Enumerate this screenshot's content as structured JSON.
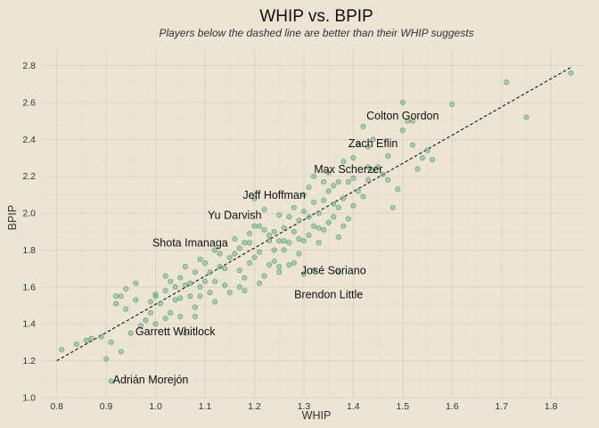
{
  "chart_data": {
    "type": "scatter",
    "title": "WHIP vs. BPIP",
    "subtitle": "Players below the dashed line are better than their WHIP suggests",
    "xlabel": "WHIP",
    "ylabel": "BPIP",
    "xlim": [
      0.77,
      1.87
    ],
    "ylim": [
      1.0,
      2.88
    ],
    "x_ticks": [
      0.8,
      0.9,
      1.0,
      1.1,
      1.2,
      1.3,
      1.4,
      1.5,
      1.6,
      1.7,
      1.8
    ],
    "y_ticks": [
      1.0,
      1.2,
      1.4,
      1.6,
      1.8,
      2.0,
      2.2,
      2.4,
      2.6,
      2.8
    ],
    "x_tick_labels": [
      "0.8",
      "0.9",
      "1.0",
      "1.1",
      "1.2",
      "1.3",
      "1.4",
      "1.5",
      "1.6",
      "1.7",
      "1.8"
    ],
    "y_tick_labels": [
      "1.0",
      "1.2",
      "1.4",
      "1.6",
      "1.8",
      "2.0",
      "2.2",
      "2.4",
      "2.6",
      "2.8"
    ],
    "grid": true,
    "reference_line": {
      "style": "dashed",
      "from": [
        0.8,
        1.2
      ],
      "to": [
        1.84,
        2.79
      ]
    },
    "point_color": "#78B88C",
    "background_color": "#ECE4D4",
    "series": [
      {
        "x": [
          0.81,
          0.84,
          0.86,
          0.87,
          0.89,
          0.9,
          0.91,
          0.91,
          0.92,
          0.92,
          0.93,
          0.94,
          0.93,
          0.94,
          0.96,
          0.97,
          0.95,
          0.96,
          0.99,
          0.99,
          1.0,
          1.0,
          1.01,
          1.02,
          1.02,
          1.03,
          1.03,
          1.04,
          1.04,
          1.05,
          1.05,
          1.06,
          1.06,
          1.07,
          1.07,
          1.08,
          1.08,
          1.09,
          1.09,
          1.1,
          1.1,
          1.11,
          1.11,
          1.12,
          1.12,
          1.13,
          1.14,
          1.14,
          1.15,
          1.16,
          1.16,
          1.17,
          1.17,
          1.18,
          1.18,
          1.19,
          1.19,
          1.2,
          1.2,
          1.21,
          1.21,
          1.22,
          1.22,
          1.23,
          1.23,
          1.24,
          1.24,
          1.25,
          1.25,
          1.25,
          1.26,
          1.26,
          1.27,
          1.27,
          1.28,
          1.28,
          1.28,
          1.29,
          1.29,
          1.3,
          1.3,
          1.3,
          1.31,
          1.31,
          1.31,
          1.32,
          1.32,
          1.32,
          1.33,
          1.33,
          1.34,
          1.34,
          1.34,
          1.35,
          1.35,
          1.35,
          1.36,
          1.36,
          1.36,
          1.37,
          1.37,
          1.37,
          1.38,
          1.38,
          1.38,
          1.39,
          1.39,
          1.4,
          1.4,
          1.4,
          1.41,
          1.41,
          1.42,
          1.42,
          1.43,
          1.43,
          1.44,
          1.44,
          1.45,
          1.46,
          1.47,
          1.48,
          1.49,
          1.5,
          1.5,
          1.51,
          1.52,
          1.53,
          1.54,
          1.55,
          1.56,
          1.6,
          1.71,
          1.75,
          1.84,
          1.2,
          1.22,
          1.24,
          1.26,
          1.27,
          1.21,
          1.18,
          1.15,
          1.12,
          1.08,
          1.05,
          1.02,
          0.98,
          1.09,
          1.13,
          1.19,
          1.23,
          1.29,
          1.33,
          1.37,
          1.43,
          1.47,
          1.52,
          1.32,
          1.3,
          1.25,
          1.17,
          1.06,
          1.0
        ],
        "y": [
          1.26,
          1.29,
          1.31,
          1.32,
          1.33,
          1.21,
          1.09,
          1.3,
          1.51,
          1.55,
          1.55,
          1.59,
          1.25,
          1.48,
          1.53,
          1.39,
          1.35,
          1.62,
          1.46,
          1.52,
          1.4,
          1.55,
          1.51,
          1.58,
          1.66,
          1.63,
          1.46,
          1.53,
          1.6,
          1.54,
          1.65,
          1.61,
          1.71,
          1.55,
          1.62,
          1.68,
          1.49,
          1.55,
          1.6,
          1.63,
          1.73,
          1.57,
          1.68,
          1.8,
          1.63,
          1.71,
          1.7,
          1.61,
          1.76,
          1.78,
          1.86,
          1.69,
          1.81,
          1.65,
          1.84,
          1.73,
          1.89,
          1.93,
          1.76,
          1.79,
          1.93,
          1.66,
          1.91,
          1.72,
          1.88,
          1.74,
          1.9,
          1.68,
          1.85,
          1.99,
          1.85,
          1.92,
          1.84,
          1.98,
          1.73,
          1.9,
          2.03,
          1.78,
          1.96,
          1.85,
          2.01,
          2.1,
          1.88,
          1.98,
          2.14,
          1.93,
          2.06,
          2.2,
          1.84,
          2.0,
          1.91,
          2.07,
          2.17,
          1.95,
          2.12,
          2.22,
          1.98,
          2.05,
          2.15,
          1.87,
          2.03,
          2.17,
          1.93,
          2.08,
          2.28,
          1.97,
          2.17,
          2.04,
          2.19,
          2.3,
          2.12,
          2.37,
          2.09,
          2.47,
          2.18,
          2.36,
          2.23,
          2.4,
          2.25,
          2.21,
          2.18,
          2.03,
          2.13,
          2.45,
          2.6,
          2.5,
          2.37,
          2.24,
          2.3,
          2.34,
          2.29,
          2.59,
          2.71,
          2.52,
          2.76,
          2.08,
          2.02,
          1.8,
          1.8,
          1.72,
          1.62,
          1.58,
          1.57,
          1.52,
          1.44,
          1.44,
          1.43,
          1.42,
          1.75,
          1.78,
          1.84,
          1.85,
          1.86,
          1.92,
          1.68,
          2.25,
          2.31,
          2.5,
          1.69,
          1.67,
          1.71,
          1.6,
          1.35,
          1.56
        ]
      }
    ],
    "annotations": [
      {
        "label": "Colton Gordon",
        "x": 1.5,
        "y": 2.53
      },
      {
        "label": "Zach Eflin",
        "x": 1.44,
        "y": 2.38
      },
      {
        "label": "Max Scherzer",
        "x": 1.39,
        "y": 2.24
      },
      {
        "label": "Jeff Hoffman",
        "x": 1.24,
        "y": 2.1
      },
      {
        "label": "Yu Darvish",
        "x": 1.16,
        "y": 1.99
      },
      {
        "label": "Shota Imanaga",
        "x": 1.07,
        "y": 1.84
      },
      {
        "label": "José Soriano",
        "x": 1.36,
        "y": 1.69
      },
      {
        "label": "Brendon Little",
        "x": 1.35,
        "y": 1.56
      },
      {
        "label": "Garrett Whitlock",
        "x": 1.04,
        "y": 1.36
      },
      {
        "label": "Adrián Morejón",
        "x": 0.99,
        "y": 1.1
      }
    ]
  }
}
